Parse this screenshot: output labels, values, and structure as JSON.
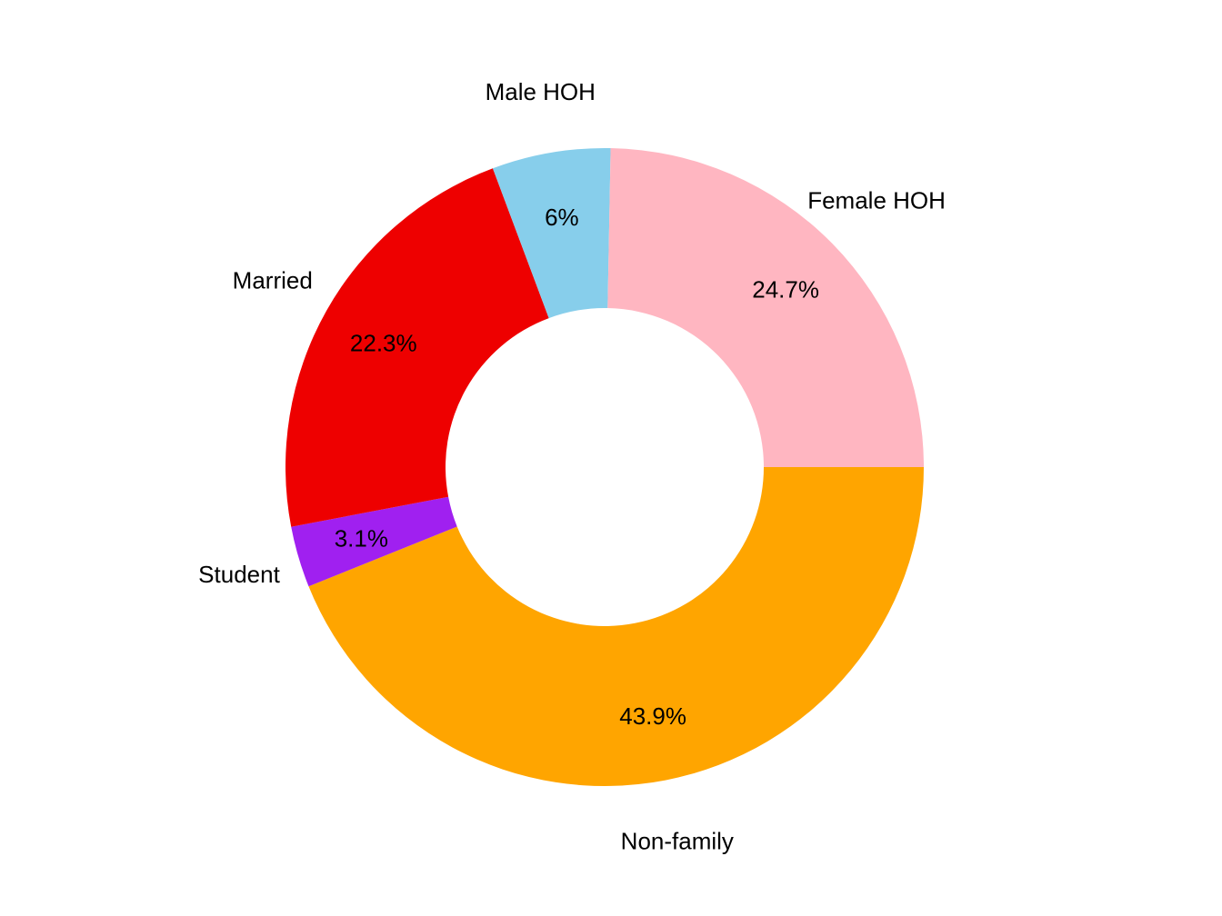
{
  "chart_data": {
    "type": "pie",
    "variant": "donut",
    "categories": [
      "Non-family",
      "Student",
      "Married",
      "Male HOH",
      "Female HOH"
    ],
    "values": [
      43.9,
      3.1,
      22.3,
      6.0,
      24.7
    ],
    "value_labels": [
      "43.9%",
      "3.1%",
      "22.3%",
      "6%",
      "24.7%"
    ],
    "colors": [
      "#FFA500",
      "#A020F0",
      "#EE0000",
      "#87CEEB",
      "#FFB6C1"
    ],
    "title": "",
    "legend": "none",
    "start_angle_deg": 0,
    "direction": "clockwise"
  }
}
